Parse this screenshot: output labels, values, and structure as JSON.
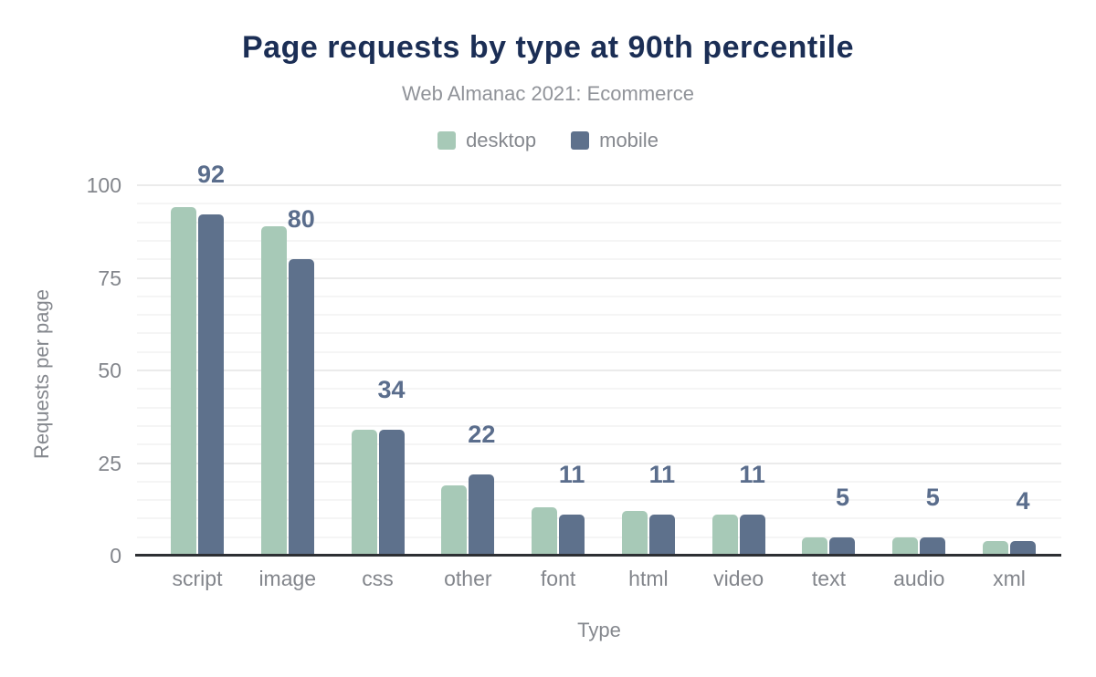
{
  "chart_data": {
    "type": "bar",
    "title": "Page requests by type at 90th percentile",
    "subtitle": "Web Almanac 2021: Ecommerce",
    "xlabel": "Type",
    "ylabel": "Requests per page",
    "categories": [
      "script",
      "image",
      "css",
      "other",
      "font",
      "html",
      "video",
      "text",
      "audio",
      "xml"
    ],
    "series": [
      {
        "name": "desktop",
        "color": "#a7c9b7",
        "values": [
          94,
          89,
          34,
          19,
          13,
          12,
          11,
          5,
          5,
          4
        ]
      },
      {
        "name": "mobile",
        "color": "#5e718c",
        "values": [
          92,
          80,
          34,
          22,
          11,
          11,
          11,
          5,
          5,
          4
        ]
      }
    ],
    "bar_labels": {
      "labeled_series": "mobile",
      "values": [
        "92",
        "80",
        "34",
        "22",
        "11",
        "11",
        "11",
        "5",
        "5",
        "4"
      ]
    },
    "ylim": [
      0,
      100
    ],
    "yticks": [
      "0",
      "25",
      "50",
      "75",
      "100"
    ],
    "minor_grid_step": 5,
    "major_grid_step": 25,
    "grid": "on",
    "legend_position": "top-center"
  },
  "colors": {
    "background": "#ffffff",
    "title_text": "#1b2e55",
    "subtitle_text": "#909399",
    "legend_text": "#85888e",
    "tick_text": "#83868c",
    "axis_title_text": "#85888e",
    "value_label_text": "#5a6d8c",
    "axis_line": "#2d2f33",
    "grid_major": "#ebebeb",
    "grid_minor": "#f5f5f5"
  }
}
